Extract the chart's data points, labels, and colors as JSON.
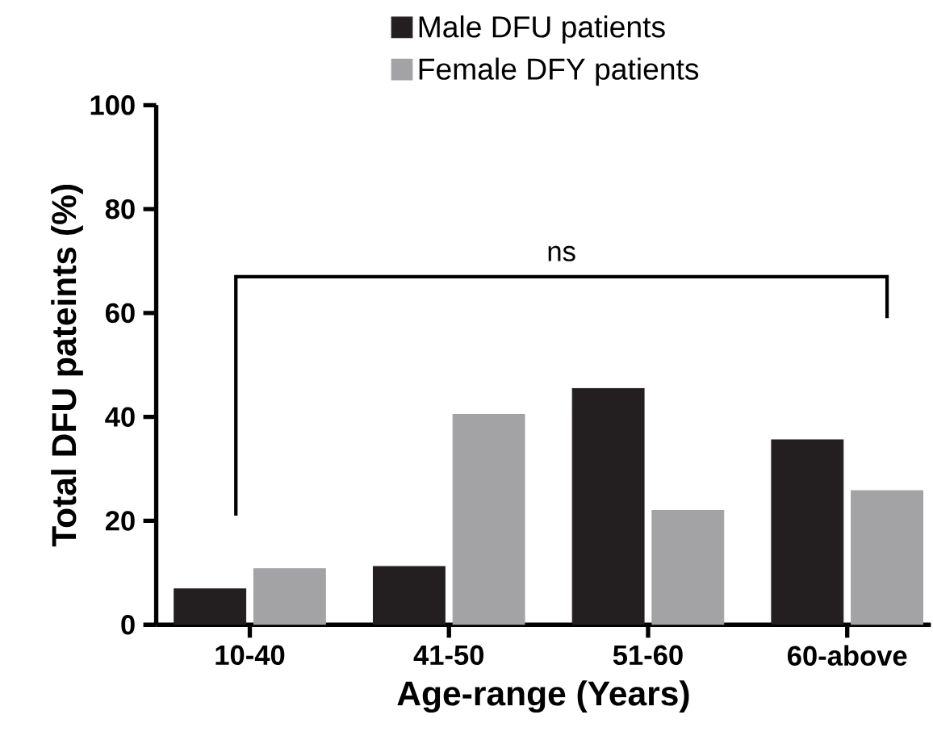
{
  "chart_data": {
    "type": "bar",
    "xlabel": "Age-range (Years)",
    "ylabel": "Total DFU pateints (%)",
    "categories": [
      "10-40",
      "41-50",
      "51-60",
      "60-above"
    ],
    "series": [
      {
        "name": "Male DFU patients",
        "color": "#231f20",
        "values": [
          6.9,
          11.2,
          45.5,
          35.6
        ]
      },
      {
        "name": "Female DFY patients",
        "color": "#a3a3a6",
        "values": [
          10.8,
          40.5,
          22.0,
          25.8
        ]
      }
    ],
    "ylim": [
      0,
      100
    ],
    "yticks": [
      0,
      20,
      40,
      60,
      80,
      100
    ],
    "legend": "top",
    "grid": false,
    "annotations": [
      "ns"
    ]
  }
}
